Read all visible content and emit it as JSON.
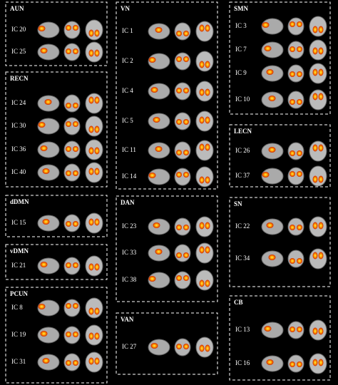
{
  "panels": [
    {
      "title": "AUN",
      "components": [
        "IC 20",
        "IC 25"
      ]
    },
    {
      "title": "RECN",
      "components": [
        "IC 24",
        "IC 30",
        "IC 36",
        "IC 40"
      ]
    },
    {
      "title": "dDMN",
      "components": [
        "IC 15"
      ]
    },
    {
      "title": "vDMN",
      "components": [
        "IC 21"
      ]
    },
    {
      "title": "PCUN",
      "components": [
        "IC 8",
        "IC 19",
        "IC 31"
      ]
    },
    {
      "title": "VN",
      "components": [
        "IC 1",
        "IC 2",
        "IC 4",
        "IC 5",
        "IC 11",
        "IC 14"
      ]
    },
    {
      "title": "DAN",
      "components": [
        "IC 23",
        "IC 33",
        "IC 38"
      ]
    },
    {
      "title": "VAN",
      "components": [
        "IC 27"
      ]
    },
    {
      "title": "SMN",
      "components": [
        "IC 3",
        "IC 7",
        "IC 9",
        "IC 10"
      ]
    },
    {
      "title": "LECN",
      "components": [
        "IC 26",
        "IC 37"
      ]
    },
    {
      "title": "SN",
      "components": [
        "IC 22",
        "IC 34"
      ]
    },
    {
      "title": "CB",
      "components": [
        "IC 13",
        "IC 16"
      ]
    }
  ]
}
